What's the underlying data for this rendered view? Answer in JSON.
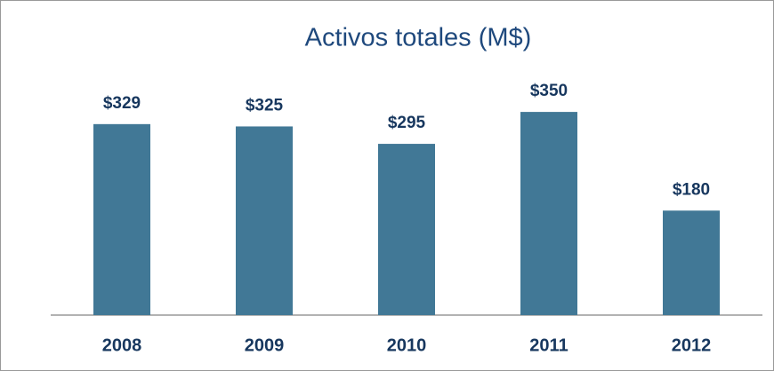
{
  "chart_data": {
    "type": "bar",
    "title": "Activos totales (M$)",
    "categories": [
      "2008",
      "2009",
      "2010",
      "2011",
      "2012"
    ],
    "values": [
      329,
      325,
      295,
      350,
      180
    ],
    "value_labels": [
      "$329",
      "$325",
      "$295",
      "$350",
      "$180"
    ],
    "color": "#417896"
  }
}
